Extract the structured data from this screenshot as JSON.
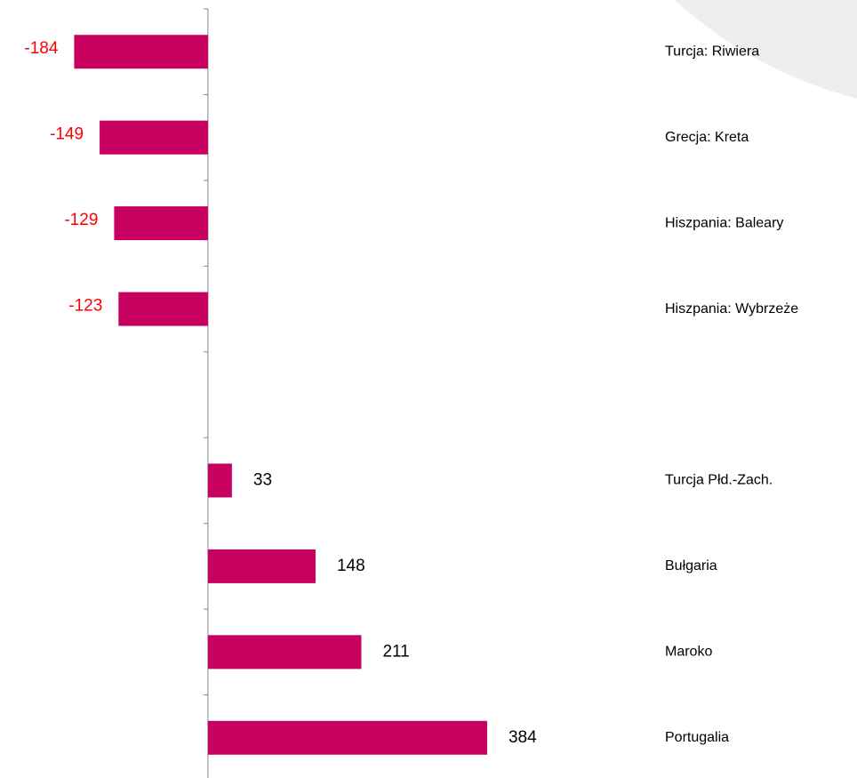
{
  "chart_data": {
    "type": "hbar",
    "categories": [
      "Turcja: Riwiera",
      "Grecja: Kreta",
      "Hiszpania: Baleary",
      "Hiszpania: Wybrzeże",
      null,
      "Turcja Płd.-Zach.",
      "Bułgaria",
      "Maroko",
      "Portugalia"
    ],
    "values": [
      -184,
      -149,
      -129,
      -123,
      null,
      33,
      148,
      211,
      384
    ],
    "color": "#c8005f",
    "label_color": "#000000",
    "negative_label_color": "#ff0000",
    "xlim": [
      -286,
      600
    ]
  }
}
